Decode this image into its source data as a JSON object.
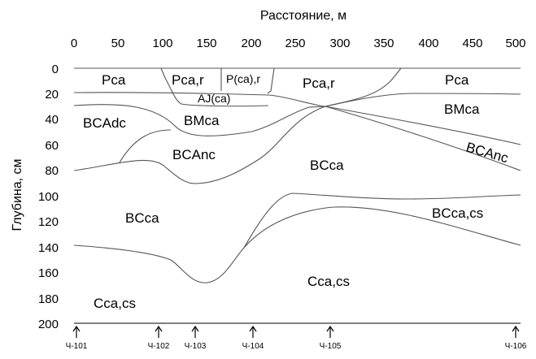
{
  "axes": {
    "x_title": "Расстояние, м",
    "y_title": "Глубина, см",
    "x_ticks": [
      "0",
      "50",
      "100",
      "150",
      "200",
      "250",
      "300",
      "350",
      "400",
      "450",
      "500"
    ],
    "y_ticks": [
      "0",
      "20",
      "40",
      "60",
      "80",
      "100",
      "120",
      "140",
      "160",
      "180",
      "200"
    ]
  },
  "horizons": [
    "Pca",
    "Pca,r",
    "P(ca),r",
    "Pca,r",
    "Pca",
    "AJ(ca)",
    "BCAdc",
    "BMca",
    "BMca",
    "BCAnc",
    "BCAnc",
    "BCca",
    "BCca",
    "BCca,cs",
    "Cca,cs",
    "Cca,cs"
  ],
  "pits": [
    "Ч-101",
    "Ч-102",
    "Ч-103",
    "Ч-104",
    "Ч-105",
    "Ч-106"
  ]
}
